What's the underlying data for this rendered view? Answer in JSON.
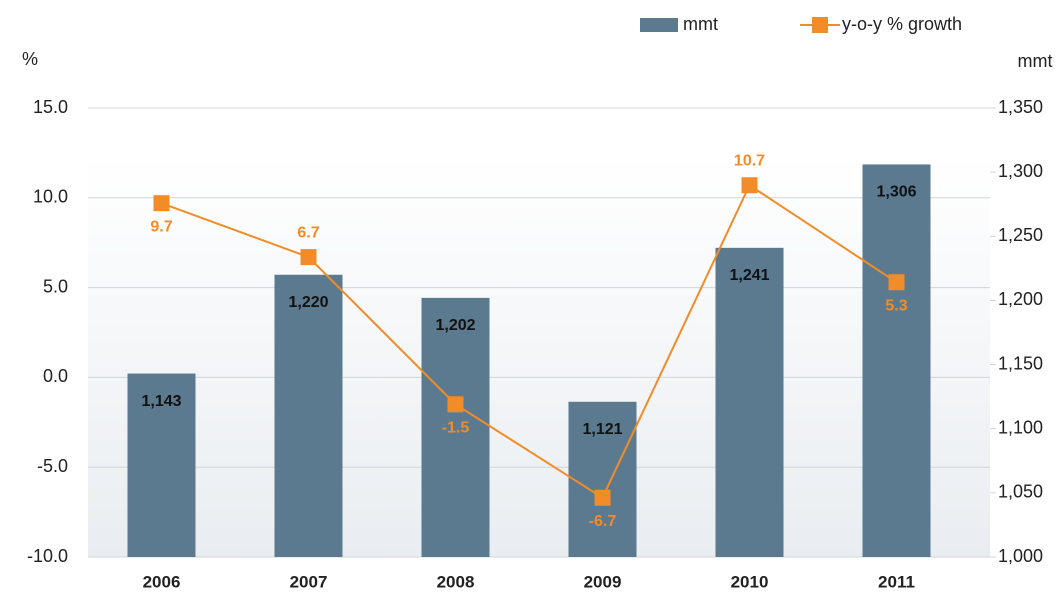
{
  "chart_data": {
    "type": "bar-line",
    "categories": [
      "2006",
      "2007",
      "2008",
      "2009",
      "2010",
      "2011"
    ],
    "y_label": "%",
    "y2_label": "mmt",
    "ylim": [
      -10,
      15
    ],
    "yticks": [
      {
        "value": -10,
        "label": "-10.0"
      },
      {
        "value": -5,
        "label": "-5.0"
      },
      {
        "value": 0,
        "label": "0.0"
      },
      {
        "value": 5,
        "label": "5.0"
      },
      {
        "value": 10,
        "label": "10.0"
      },
      {
        "value": 15,
        "label": "15.0"
      }
    ],
    "y2lim": [
      1000,
      1350
    ],
    "y2ticks": [
      {
        "value": 1000,
        "label": "1,000"
      },
      {
        "value": 1050,
        "label": "1,050"
      },
      {
        "value": 1100,
        "label": "1,100"
      },
      {
        "value": 1150,
        "label": "1,150"
      },
      {
        "value": 1200,
        "label": "1,200"
      },
      {
        "value": 1250,
        "label": "1,250"
      },
      {
        "value": 1300,
        "label": "1,300"
      },
      {
        "value": 1350,
        "label": "1,350"
      }
    ],
    "grid": true,
    "legend": "top-right",
    "series": [
      {
        "name": "mmt",
        "type": "bar",
        "axis": "y2",
        "color": "#5b7a8f",
        "values": [
          1143,
          1220,
          1202,
          1121,
          1241,
          1306
        ],
        "value_labels": [
          "1,143",
          "1,220",
          "1,202",
          "1,121",
          "1,241",
          "1,306"
        ]
      },
      {
        "name": "y-o-y % growth",
        "type": "line",
        "axis": "y",
        "color": "#f28c28",
        "values": [
          9.7,
          6.7,
          -1.5,
          -6.7,
          10.7,
          5.3
        ]
      }
    ]
  }
}
